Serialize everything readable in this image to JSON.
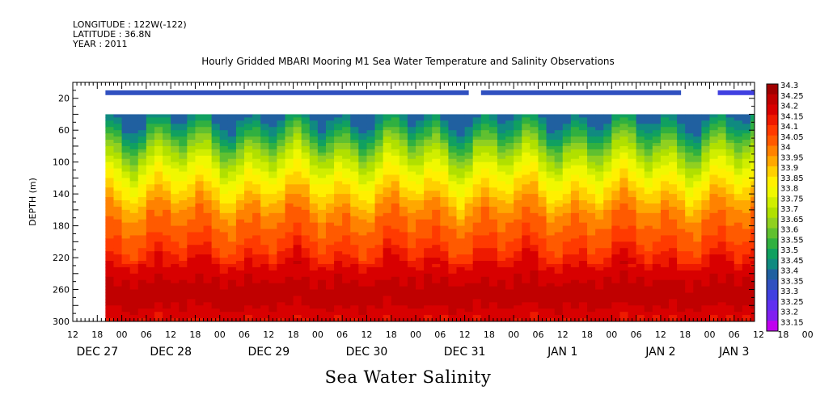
{
  "header": {
    "longitude": "LONGITUDE : 122W(-122)",
    "latitude": "LATITUDE : 36.8N",
    "year": "YEAR : 2011",
    "title": "Hourly Gridded MBARI Mooring M1 Sea Water Temperature and Salinity Observations"
  },
  "bottom_title": "Sea Water Salinity",
  "chart_data": {
    "type": "heatmap",
    "title": "Hourly Gridded MBARI Mooring M1 Sea Water Temperature and Salinity Observations",
    "variable": "Sea Water Salinity",
    "ylabel": "DEPTH (m)",
    "y_inverted": true,
    "ylim": [
      0,
      300
    ],
    "yticks": [
      20,
      60,
      100,
      140,
      180,
      220,
      260,
      300
    ],
    "xlim_hours": [
      -12,
      155
    ],
    "xtick_labels": [
      "12",
      "18",
      "00",
      "06",
      "12",
      "18",
      "00",
      "06",
      "12",
      "18",
      "00",
      "06",
      "12",
      "18",
      "00",
      "06",
      "12",
      "18",
      "00",
      "06",
      "12",
      "18",
      "00",
      "06",
      "12",
      "18",
      "00",
      "06",
      "12",
      "18",
      "00",
      "06"
    ],
    "day_labels": [
      {
        "label": "DEC 27",
        "hour": -6
      },
      {
        "label": "DEC 28",
        "hour": 12
      },
      {
        "label": "DEC 29",
        "hour": 36
      },
      {
        "label": "DEC 30",
        "hour": 60
      },
      {
        "label": "DEC 31",
        "hour": 84
      },
      {
        "label": "JAN  1",
        "hour": 108
      },
      {
        "label": "JAN  2",
        "hour": 132
      },
      {
        "label": "JAN  3",
        "hour": 150
      }
    ],
    "data_start_hour": -4,
    "data_end_hour": 155,
    "surface_band": {
      "depth_range": [
        10,
        16
      ],
      "segments": [
        {
          "from_hour": -4,
          "to_hour": 85,
          "value": 33.35
        },
        {
          "from_hour": 88,
          "to_hour": 137,
          "value": 33.35
        },
        {
          "from_hour": 146,
          "to_hour": 155,
          "value": 33.3
        }
      ]
    },
    "profile_top_depth": 40,
    "depth_levels": [
      40,
      50,
      60,
      70,
      80,
      90,
      100,
      110,
      120,
      130,
      140,
      150,
      160,
      170,
      180,
      190,
      200,
      210,
      220,
      230,
      240,
      250,
      260,
      270,
      280,
      290,
      300
    ],
    "mean_profile": [
      33.42,
      33.47,
      33.53,
      33.59,
      33.65,
      33.71,
      33.76,
      33.81,
      33.85,
      33.89,
      33.93,
      33.97,
      34.01,
      34.04,
      34.06,
      34.08,
      34.1,
      34.13,
      34.16,
      34.2,
      34.23,
      34.25,
      34.27,
      34.27,
      34.26,
      34.22,
      34.2
    ],
    "colorbar": {
      "levels": [
        34.3,
        34.25,
        34.2,
        34.15,
        34.1,
        34.05,
        34,
        33.95,
        33.9,
        33.85,
        33.8,
        33.75,
        33.7,
        33.65,
        33.6,
        33.55,
        33.5,
        33.45,
        33.4,
        33.35,
        33.3,
        33.25,
        33.2,
        33.15
      ],
      "labels": [
        "34.3",
        "34.25",
        "34.2",
        "34.15",
        "34.1",
        "34.05",
        "34",
        "33.95",
        "33.9",
        "33.85",
        "33.8",
        "33.75",
        "33.7",
        "33.65",
        "33.6",
        "33.55",
        "33.5",
        "33.45",
        "33.4",
        "33.35",
        "33.3",
        "33.25",
        "33.2",
        "33.15"
      ],
      "colors": [
        "#a00000",
        "#c00000",
        "#d80000",
        "#ee1a00",
        "#ff3a00",
        "#ff5a00",
        "#ff8200",
        "#ffa800",
        "#ffd000",
        "#fff000",
        "#f0f800",
        "#d0ee00",
        "#b0e000",
        "#90d020",
        "#60c030",
        "#30b040",
        "#10a060",
        "#108a80",
        "#2060a0",
        "#3050c0",
        "#4040e0",
        "#6030f0",
        "#8020f0",
        "#c000f0"
      ]
    }
  }
}
